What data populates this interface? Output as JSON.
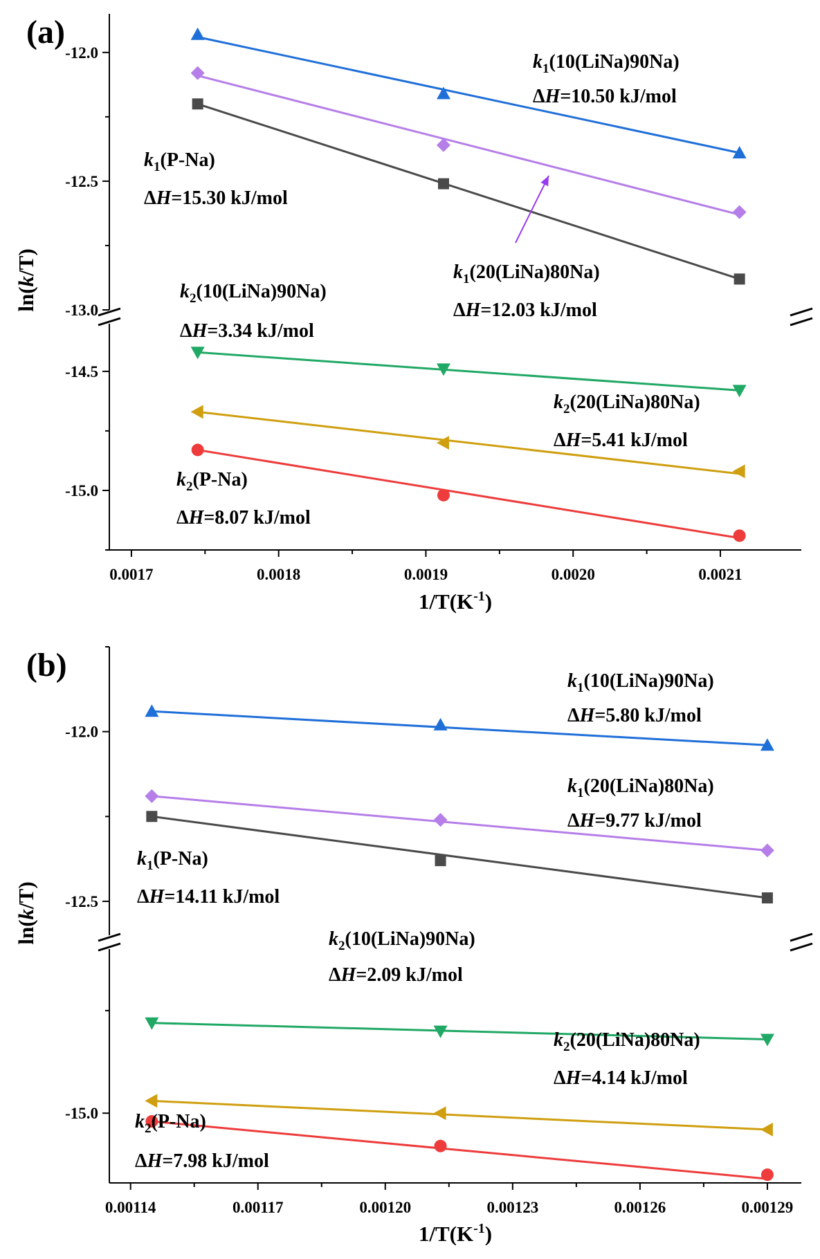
{
  "chart_data": [
    {
      "panel_label": "(a)",
      "type": "line",
      "xlabel": "1/T(K",
      "xlabel_sup": "-1",
      "xlabel_tail": ")",
      "ylabel_pre": "ln(",
      "ylabel_var": "k",
      "ylabel_post": "/T)",
      "x_ticks": [
        {
          "v": 0.0017,
          "label": "0.0017"
        },
        {
          "v": 0.0018,
          "label": "0.0018"
        },
        {
          "v": 0.0019,
          "label": "0.0019"
        },
        {
          "v": 0.002,
          "label": "0.0020"
        },
        {
          "v": 0.0021,
          "label": "0.0021"
        }
      ],
      "xlim": [
        0.001685,
        0.002155
      ],
      "upper_ylim": [
        -13.0,
        -11.85
      ],
      "lower_ylim": [
        -15.25,
        -14.3
      ],
      "upper_y_ticks": [
        {
          "v": -12.0,
          "label": "-12.0"
        },
        {
          "v": -12.5,
          "label": "-12.5"
        },
        {
          "v": -13.0,
          "label": "-13.0"
        }
      ],
      "lower_y_ticks": [
        {
          "v": -14.5,
          "label": "-14.5"
        },
        {
          "v": -15.0,
          "label": "-15.0"
        }
      ],
      "x": [
        0.001745,
        0.001912,
        0.002113
      ],
      "series": [
        {
          "id": "k1-10LiNa90Na",
          "segment": "upper",
          "marker": "triangle-up",
          "color": "#1f6fd9",
          "values": [
            -11.93,
            -12.16,
            -12.39
          ],
          "fit": [
            -11.94,
            -12.39
          ]
        },
        {
          "id": "k1-20LiNa80Na",
          "segment": "upper",
          "marker": "diamond",
          "color": "#b57ee8",
          "values": [
            -12.08,
            -12.36,
            -12.62
          ],
          "fit": [
            -12.09,
            -12.63
          ]
        },
        {
          "id": "k1-P-Na",
          "segment": "upper",
          "marker": "square",
          "color": "#4a4a4a",
          "values": [
            -12.2,
            -12.51,
            -12.88
          ],
          "fit": [
            -12.2,
            -12.88
          ]
        },
        {
          "id": "k2-10LiNa90Na",
          "segment": "lower",
          "marker": "triangle-down",
          "color": "#20a865",
          "values": [
            -14.42,
            -14.49,
            -14.58
          ],
          "fit": [
            -14.42,
            -14.58
          ]
        },
        {
          "id": "k2-20LiNa80Na",
          "segment": "lower",
          "marker": "triangle-left",
          "color": "#cf9f10",
          "values": [
            -14.67,
            -14.8,
            -14.92
          ],
          "fit": [
            -14.67,
            -14.93
          ]
        },
        {
          "id": "k2-P-Na",
          "segment": "lower",
          "marker": "circle",
          "color": "#ee3b3b",
          "values": [
            -14.83,
            -15.02,
            -15.19
          ],
          "fit": [
            -14.83,
            -15.2
          ]
        }
      ],
      "annotations": [
        {
          "k": "k",
          "sub": "1",
          "label": "(10(LiNa)90Na)",
          "dh": "=10.50 kJ/mol"
        },
        {
          "k": "k",
          "sub": "1",
          "label": "(P-Na)",
          "dh": "=15.30 kJ/mol"
        },
        {
          "k": "k",
          "sub": "1",
          "label": "(20(LiNa)80Na)",
          "dh": "=12.03 kJ/mol"
        },
        {
          "k": "k",
          "sub": "2",
          "label": "(10(LiNa)90Na)",
          "dh": "=3.34 kJ/mol"
        },
        {
          "k": "k",
          "sub": "2",
          "label": "(20(LiNa)80Na)",
          "dh": "=5.41 kJ/mol"
        },
        {
          "k": "k",
          "sub": "2",
          "label": "(P-Na)",
          "dh": "=8.07 kJ/mol"
        }
      ],
      "dh_prefix": "Δ",
      "dh_var": "H"
    },
    {
      "panel_label": "(b)",
      "type": "line",
      "xlabel": "1/T(K",
      "xlabel_sup": "-1",
      "xlabel_tail": ")",
      "ylabel_pre": "ln(",
      "ylabel_var": "k",
      "ylabel_post": "/T)",
      "x_ticks": [
        {
          "v": 0.00114,
          "label": "0.00114"
        },
        {
          "v": 0.00117,
          "label": "0.00117"
        },
        {
          "v": 0.0012,
          "label": "0.00120"
        },
        {
          "v": 0.00123,
          "label": "0.00123"
        },
        {
          "v": 0.00126,
          "label": "0.00126"
        },
        {
          "v": 0.00129,
          "label": "0.00129"
        }
      ],
      "xlim": [
        0.001135,
        0.001298
      ],
      "upper_ylim": [
        -12.6,
        -11.75
      ],
      "lower_ylim": [
        -15.17,
        -14.6
      ],
      "upper_y_ticks": [
        {
          "v": -12.0,
          "label": "-12.0"
        },
        {
          "v": -12.5,
          "label": "-12.5"
        }
      ],
      "lower_y_ticks": [
        {
          "v": -15.0,
          "label": "-15.0"
        }
      ],
      "x": [
        0.001145,
        0.001213,
        0.00129
      ],
      "series": [
        {
          "id": "k1-10LiNa90Na",
          "segment": "upper",
          "marker": "triangle-up",
          "color": "#1f6fd9",
          "values": [
            -11.94,
            -11.98,
            -12.04
          ],
          "fit": [
            -11.94,
            -12.04
          ]
        },
        {
          "id": "k1-20LiNa80Na",
          "segment": "upper",
          "marker": "diamond",
          "color": "#b57ee8",
          "values": [
            -12.19,
            -12.26,
            -12.35
          ],
          "fit": [
            -12.19,
            -12.35
          ]
        },
        {
          "id": "k1-P-Na",
          "segment": "upper",
          "marker": "square",
          "color": "#4a4a4a",
          "values": [
            -12.25,
            -12.38,
            -12.49
          ],
          "fit": [
            -12.25,
            -12.49
          ]
        },
        {
          "id": "k2-10LiNa90Na",
          "segment": "lower",
          "marker": "triangle-down",
          "color": "#20a865",
          "values": [
            -14.78,
            -14.8,
            -14.82
          ],
          "fit": [
            -14.78,
            -14.82
          ]
        },
        {
          "id": "k2-20LiNa80Na",
          "segment": "lower",
          "marker": "triangle-left",
          "color": "#cf9f10",
          "values": [
            -14.97,
            -15.0,
            -15.04
          ],
          "fit": [
            -14.97,
            -15.04
          ]
        },
        {
          "id": "k2-P-Na",
          "segment": "lower",
          "marker": "circle",
          "color": "#ee3b3b",
          "values": [
            -15.02,
            -15.08,
            -15.15
          ],
          "fit": [
            -15.02,
            -15.16
          ]
        }
      ],
      "annotations": [
        {
          "k": "k",
          "sub": "1",
          "label": "(10(LiNa)90Na)",
          "dh": "=5.80 kJ/mol"
        },
        {
          "k": "k",
          "sub": "1",
          "label": "(20(LiNa)80Na)",
          "dh": "=9.77 kJ/mol"
        },
        {
          "k": "k",
          "sub": "1",
          "label": "(P-Na)",
          "dh": "=14.11 kJ/mol"
        },
        {
          "k": "k",
          "sub": "2",
          "label": "(10(LiNa)90Na)",
          "dh": "=2.09 kJ/mol"
        },
        {
          "k": "k",
          "sub": "2",
          "label": "(20(LiNa)80Na)",
          "dh": "=4.14 kJ/mol"
        },
        {
          "k": "k",
          "sub": "2",
          "label": "(P-Na)",
          "dh": "=7.98 kJ/mol"
        }
      ],
      "dh_prefix": "Δ",
      "dh_var": "H"
    }
  ]
}
